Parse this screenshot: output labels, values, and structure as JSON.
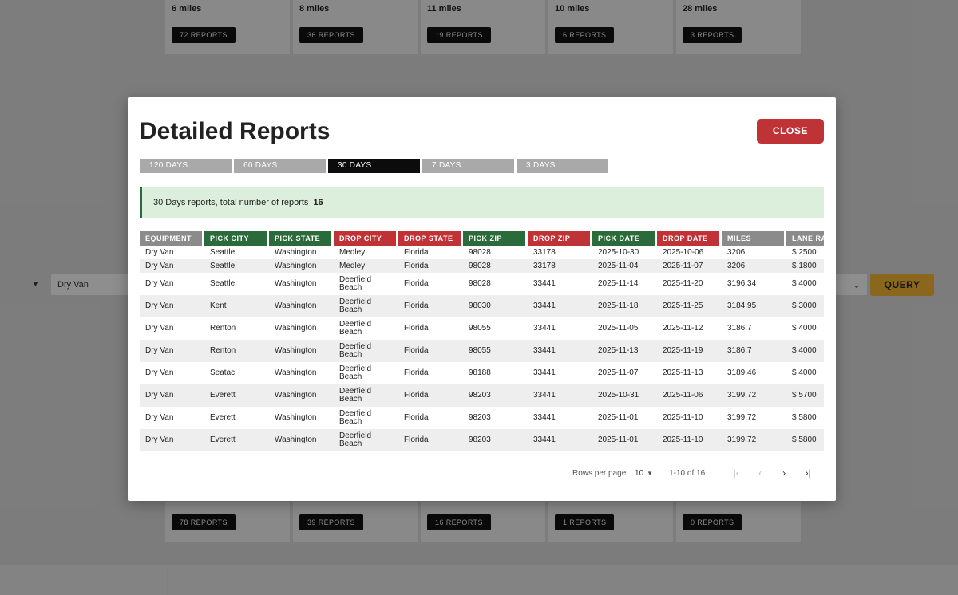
{
  "background": {
    "top_cards": [
      {
        "miles": "6 miles",
        "reports": "72 REPORTS"
      },
      {
        "miles": "8 miles",
        "reports": "36 REPORTS"
      },
      {
        "miles": "11 miles",
        "reports": "19 REPORTS"
      },
      {
        "miles": "10 miles",
        "reports": "6 REPORTS"
      },
      {
        "miles": "28 miles",
        "reports": "3 REPORTS"
      }
    ],
    "bottom_cards": [
      {
        "reports": "78 REPORTS"
      },
      {
        "reports": "39 REPORTS"
      },
      {
        "reports": "16 REPORTS"
      },
      {
        "reports": "1 REPORTS"
      },
      {
        "reports": "0 REPORTS"
      }
    ],
    "filter_arrow": "▼",
    "filter_value": "Dry Van",
    "right_select_chevron": "⌄",
    "query_label": "QUERY"
  },
  "modal": {
    "title": "Detailed Reports",
    "close_label": "CLOSE",
    "tabs": [
      "120 DAYS",
      "60 DAYS",
      "30 DAYS",
      "7 DAYS",
      "3 DAYS"
    ],
    "active_tab": "30 DAYS",
    "summary_text": "30 Days reports, total number of reports",
    "summary_count": "16",
    "columns": [
      {
        "label": "EQUIPMENT",
        "color": "grey"
      },
      {
        "label": "PICK CITY",
        "color": "green"
      },
      {
        "label": "PICK STATE",
        "color": "green"
      },
      {
        "label": "DROP CITY",
        "color": "red"
      },
      {
        "label": "DROP STATE",
        "color": "red"
      },
      {
        "label": "PICK ZIP",
        "color": "green"
      },
      {
        "label": "DROP ZIP",
        "color": "red"
      },
      {
        "label": "PICK DATE",
        "color": "green"
      },
      {
        "label": "DROP DATE",
        "color": "red"
      },
      {
        "label": "MILES",
        "color": "grey"
      },
      {
        "label": "LANE RATE",
        "color": "grey"
      }
    ],
    "rows": [
      [
        "Dry Van",
        "Seattle",
        "Washington",
        "Medley",
        "Florida",
        "98028",
        "33178",
        "2025-10-30",
        "2025-10-06",
        "3206",
        "$ 2500"
      ],
      [
        "Dry Van",
        "Seattle",
        "Washington",
        "Medley",
        "Florida",
        "98028",
        "33178",
        "2025-11-04",
        "2025-11-07",
        "3206",
        "$ 1800"
      ],
      [
        "Dry Van",
        "Seattle",
        "Washington",
        "Deerfield Beach",
        "Florida",
        "98028",
        "33441",
        "2025-11-14",
        "2025-11-20",
        "3196.34",
        "$ 4000"
      ],
      [
        "Dry Van",
        "Kent",
        "Washington",
        "Deerfield Beach",
        "Florida",
        "98030",
        "33441",
        "2025-11-18",
        "2025-11-25",
        "3184.95",
        "$ 3000"
      ],
      [
        "Dry Van",
        "Renton",
        "Washington",
        "Deerfield Beach",
        "Florida",
        "98055",
        "33441",
        "2025-11-05",
        "2025-11-12",
        "3186.7",
        "$ 4000"
      ],
      [
        "Dry Van",
        "Renton",
        "Washington",
        "Deerfield Beach",
        "Florida",
        "98055",
        "33441",
        "2025-11-13",
        "2025-11-19",
        "3186.7",
        "$ 4000"
      ],
      [
        "Dry Van",
        "Seatac",
        "Washington",
        "Deerfield Beach",
        "Florida",
        "98188",
        "33441",
        "2025-11-07",
        "2025-11-13",
        "3189.46",
        "$ 4000"
      ],
      [
        "Dry Van",
        "Everett",
        "Washington",
        "Deerfield Beach",
        "Florida",
        "98203",
        "33441",
        "2025-10-31",
        "2025-11-06",
        "3199.72",
        "$ 5700"
      ],
      [
        "Dry Van",
        "Everett",
        "Washington",
        "Deerfield Beach",
        "Florida",
        "98203",
        "33441",
        "2025-11-01",
        "2025-11-10",
        "3199.72",
        "$ 5800"
      ],
      [
        "Dry Van",
        "Everett",
        "Washington",
        "Deerfield Beach",
        "Florida",
        "98203",
        "33441",
        "2025-11-01",
        "2025-11-10",
        "3199.72",
        "$ 5800"
      ]
    ],
    "pagination": {
      "rows_per_page_label": "Rows per page:",
      "rows_per_page": "10",
      "caret": "▼",
      "range": "1-10 of 16",
      "first": "|‹",
      "prev": "‹",
      "next": "›",
      "last": "›|"
    }
  }
}
